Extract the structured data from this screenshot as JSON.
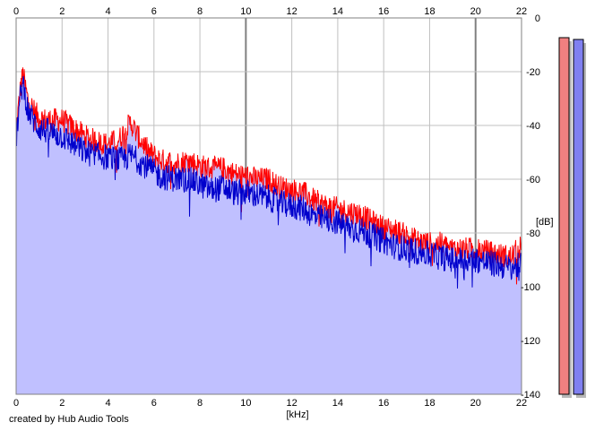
{
  "credit": "created by Hub Audio Tools",
  "colors": {
    "background": "#ffffff",
    "fill": "#c0c0ff",
    "channel_left": "#ff0000",
    "channel_right": "#0000cc",
    "grid": "#c0c0c0",
    "grid_major": "#808080",
    "meter_left": "#f08080",
    "meter_right": "#8080f0"
  },
  "meters": {
    "left_level": 0.99,
    "right_level": 0.985
  },
  "chart_data": {
    "type": "line",
    "xlabel": "[kHz]",
    "ylabel": "[dB]",
    "xlim": [
      0,
      22
    ],
    "ylim": [
      -140,
      0
    ],
    "x_ticks": [
      "0",
      "2",
      "4",
      "6",
      "8",
      "10",
      "12",
      "14",
      "16",
      "18",
      "20",
      "22"
    ],
    "y_ticks": [
      "0",
      "-20",
      "-40",
      "-60",
      "-80",
      "-100",
      "-120",
      "-140"
    ],
    "grid": true,
    "series": [
      {
        "color": "#ff0000",
        "x": [
          0,
          0.2,
          0.3,
          0.5,
          0.8,
          1.0,
          1.3,
          1.6,
          2.0,
          2.5,
          3.0,
          3.5,
          4.0,
          4.5,
          4.8,
          5.0,
          5.3,
          5.8,
          6.3,
          7.0,
          7.5,
          8.0,
          8.5,
          9.0,
          9.5,
          10.0,
          10.5,
          11.0,
          11.5,
          12.0,
          12.5,
          13.0,
          13.5,
          14.0,
          14.5,
          15.0,
          15.5,
          16.0,
          16.5,
          17.0,
          17.5,
          18.0,
          18.5,
          19.0,
          19.5,
          20.0,
          20.5,
          21.0,
          21.5,
          22.0
        ],
        "y": [
          -42,
          -25,
          -21,
          -30,
          -35,
          -37,
          -38,
          -38,
          -38,
          -41,
          -44,
          -46,
          -47,
          -45,
          -41,
          -39,
          -44,
          -50,
          -53,
          -54,
          -53,
          -55,
          -56,
          -56,
          -58,
          -59,
          -60,
          -60,
          -63,
          -64,
          -65,
          -68,
          -70,
          -71,
          -72,
          -73,
          -76,
          -78,
          -79,
          -81,
          -83,
          -84,
          -84,
          -86,
          -86,
          -86,
          -87,
          -88,
          -89,
          -85
        ]
      },
      {
        "color": "#0000cc",
        "x": [
          0,
          0.2,
          0.3,
          0.5,
          0.8,
          1.0,
          1.3,
          1.6,
          2.0,
          2.5,
          3.0,
          3.5,
          4.0,
          4.5,
          4.8,
          5.0,
          5.3,
          5.8,
          6.3,
          7.0,
          7.5,
          8.0,
          8.5,
          9.0,
          9.5,
          10.0,
          10.5,
          11.0,
          11.5,
          12.0,
          12.5,
          13.0,
          13.5,
          14.0,
          14.5,
          15.0,
          15.5,
          16.0,
          16.5,
          17.0,
          17.5,
          18.0,
          18.5,
          19.0,
          19.5,
          20.0,
          20.5,
          21.0,
          21.5,
          22.0
        ],
        "y": [
          -45,
          -28,
          -24,
          -34,
          -39,
          -41,
          -42,
          -43,
          -44,
          -47,
          -50,
          -51,
          -52,
          -53,
          -52,
          -51,
          -53,
          -56,
          -59,
          -60,
          -60,
          -62,
          -64,
          -63,
          -65,
          -65,
          -66,
          -67,
          -69,
          -70,
          -71,
          -74,
          -75,
          -76,
          -78,
          -79,
          -81,
          -83,
          -85,
          -86,
          -87,
          -88,
          -89,
          -90,
          -90,
          -90,
          -91,
          -92,
          -93,
          -92
        ]
      }
    ]
  }
}
